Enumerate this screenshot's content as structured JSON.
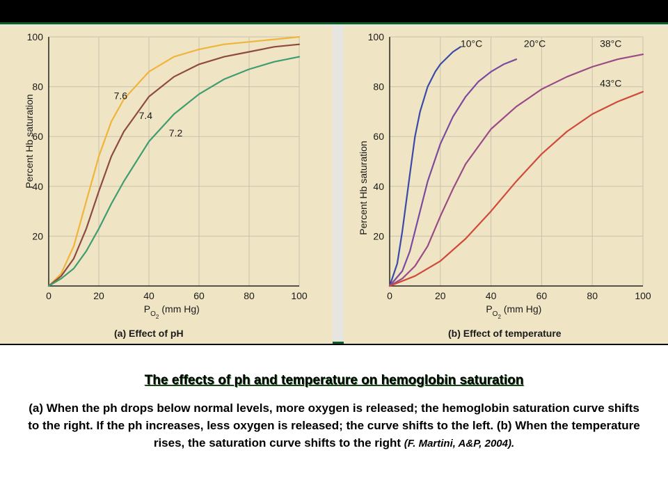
{
  "caption": {
    "title": "The effects of ph and temperature on hemoglobin saturation",
    "body": "(a) When the ph drops below normal levels, more oxygen is released; the hemoglobin saturation curve shifts to the right. If the ph increases, less oxygen is released; the curve shifts to the left. (b) When the temperature rises, the saturation curve shifts to the right",
    "citation": "(F. Martini, A&P, 2004)."
  },
  "chart_data": [
    {
      "type": "line",
      "panel_label": "(a) Effect of pH",
      "ylabel": "Percent Hb saturation",
      "xlabel": "P",
      "xlabel_sub": "O",
      "xlabel_sub2": "2",
      "xlabel_unit": "(mm Hg)",
      "xlim": [
        0,
        100
      ],
      "ylim": [
        0,
        100
      ],
      "xticks": [
        0,
        20,
        40,
        60,
        80,
        100
      ],
      "yticks": [
        20,
        40,
        60,
        80,
        100
      ],
      "series": [
        {
          "name": "7.6",
          "color": "#f0b43a",
          "x": [
            0,
            5,
            10,
            15,
            20,
            25,
            30,
            40,
            50,
            60,
            70,
            80,
            90,
            100
          ],
          "y": [
            0,
            5,
            16,
            34,
            52,
            66,
            75,
            86,
            92,
            95,
            97,
            98,
            99,
            100
          ]
        },
        {
          "name": "7.4",
          "color": "#8e4a40",
          "x": [
            0,
            5,
            10,
            15,
            20,
            25,
            30,
            40,
            50,
            60,
            70,
            80,
            90,
            100
          ],
          "y": [
            0,
            4,
            11,
            23,
            38,
            52,
            62,
            76,
            84,
            89,
            92,
            94,
            96,
            97
          ]
        },
        {
          "name": "7.2",
          "color": "#3f9c70",
          "x": [
            0,
            5,
            10,
            15,
            20,
            25,
            30,
            40,
            50,
            60,
            70,
            80,
            90,
            100
          ],
          "y": [
            0,
            3,
            7,
            14,
            23,
            33,
            42,
            58,
            69,
            77,
            83,
            87,
            90,
            92
          ]
        }
      ]
    },
    {
      "type": "line",
      "panel_label": "(b) Effect of temperature",
      "ylabel": "Percent Hb saturation",
      "xlabel": "P",
      "xlabel_sub": "O",
      "xlabel_sub2": "2",
      "xlabel_unit": "(mm Hg)",
      "xlim": [
        0,
        100
      ],
      "ylim": [
        0,
        100
      ],
      "xticks": [
        0,
        20,
        40,
        60,
        80,
        100
      ],
      "yticks": [
        20,
        40,
        60,
        80,
        100
      ],
      "series": [
        {
          "name": "10°C",
          "color": "#3a4aa8",
          "x": [
            0,
            3,
            5,
            8,
            10,
            12,
            15,
            18,
            20,
            25,
            28
          ],
          "y": [
            0,
            9,
            22,
            45,
            60,
            70,
            80,
            86,
            89,
            94,
            96
          ]
        },
        {
          "name": "20°C",
          "color": "#7b4aa0",
          "x": [
            0,
            5,
            8,
            10,
            15,
            20,
            25,
            30,
            35,
            40,
            45,
            50
          ],
          "y": [
            0,
            6,
            14,
            22,
            42,
            57,
            68,
            76,
            82,
            86,
            89,
            91
          ]
        },
        {
          "name": "38°C",
          "color": "#9a4a86",
          "x": [
            0,
            5,
            10,
            15,
            20,
            25,
            30,
            40,
            50,
            60,
            70,
            80,
            90,
            100
          ],
          "y": [
            0,
            3,
            8,
            16,
            28,
            39,
            49,
            63,
            72,
            79,
            84,
            88,
            91,
            93
          ]
        },
        {
          "name": "43°C",
          "color": "#cf4a3a",
          "x": [
            0,
            10,
            20,
            30,
            40,
            50,
            60,
            70,
            80,
            90,
            100
          ],
          "y": [
            0,
            4,
            10,
            19,
            30,
            42,
            53,
            62,
            69,
            74,
            78
          ]
        }
      ]
    }
  ]
}
